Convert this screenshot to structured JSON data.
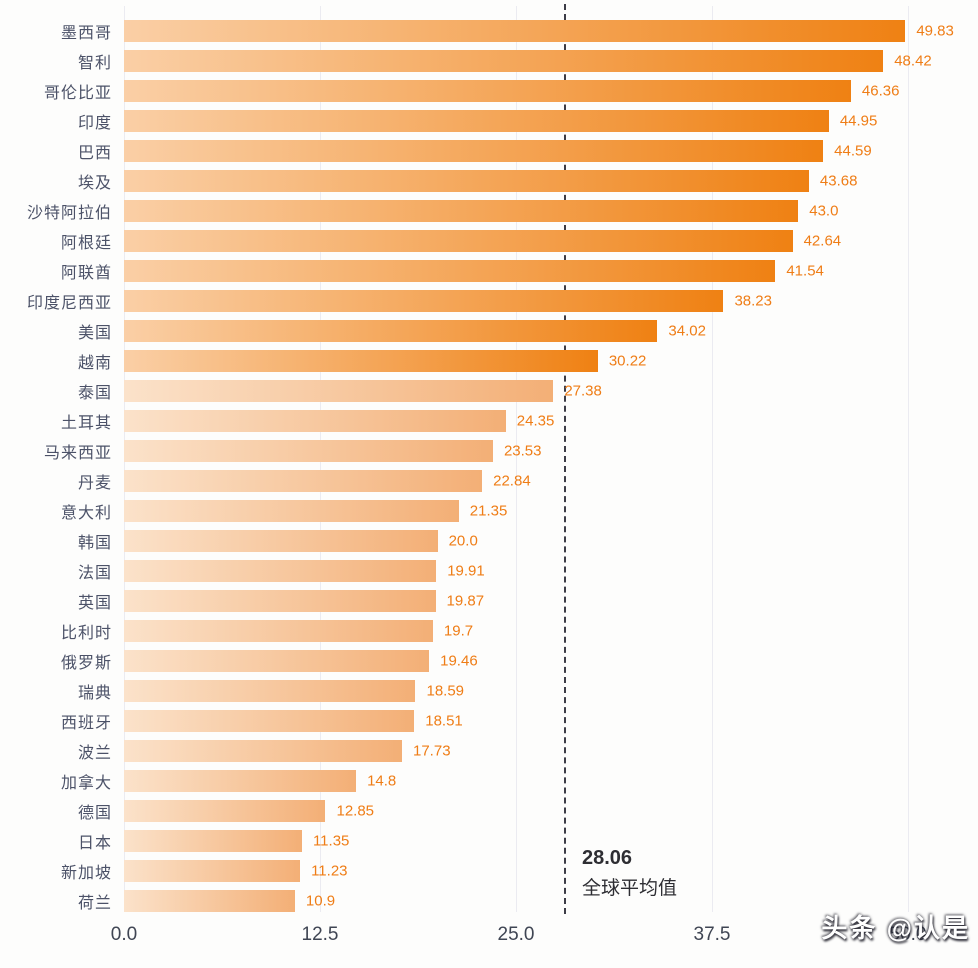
{
  "chart_data": {
    "type": "bar",
    "orientation": "horizontal",
    "title": "",
    "xlabel": "",
    "ylabel": "",
    "xlim": [
      0,
      50
    ],
    "x_ticks": [
      "0.0",
      "12.5",
      "25.0",
      "37.5",
      "50.0"
    ],
    "grid": "vertical-light",
    "legend": "none",
    "categories": [
      "墨西哥",
      "智利",
      "哥伦比亚",
      "印度",
      "巴西",
      "埃及",
      "沙特阿拉伯",
      "阿根廷",
      "阿联酋",
      "印度尼西亚",
      "美国",
      "越南",
      "泰国",
      "土耳其",
      "马来西亚",
      "丹麦",
      "意大利",
      "韩国",
      "法国",
      "英国",
      "比利时",
      "俄罗斯",
      "瑞典",
      "西班牙",
      "波兰",
      "加拿大",
      "德国",
      "日本",
      "新加坡",
      "荷兰"
    ],
    "values": [
      49.83,
      48.42,
      46.36,
      44.95,
      44.59,
      43.68,
      43.0,
      42.64,
      41.54,
      38.23,
      34.02,
      30.22,
      27.38,
      24.35,
      23.53,
      22.84,
      21.35,
      20.0,
      19.91,
      19.87,
      19.7,
      19.46,
      18.59,
      18.51,
      17.73,
      14.8,
      12.85,
      11.35,
      11.23,
      10.9
    ],
    "value_labels": [
      "49.83",
      "48.42",
      "46.36",
      "44.95",
      "44.59",
      "43.68",
      "43.0",
      "42.64",
      "41.54",
      "38.23",
      "34.02",
      "30.22",
      "27.38",
      "24.35",
      "23.53",
      "22.84",
      "21.35",
      "20.0",
      "19.91",
      "19.87",
      "19.7",
      "19.46",
      "18.59",
      "18.51",
      "17.73",
      "14.8",
      "12.85",
      "11.35",
      "11.23",
      "10.9"
    ],
    "average_line": {
      "value": 28.06,
      "label_value": "28.06",
      "label_text": "全球平均值",
      "style": "dashed-dark"
    },
    "colors": {
      "bar_above_avg_start": "#facfa6",
      "bar_above_avg_end": "#ef8113",
      "bar_below_avg_start": "#fbe2ca",
      "bar_below_avg_end": "#f3af76",
      "value_label": "#ef7d16",
      "category_label": "#4c5268",
      "axis_label": "#3f4553",
      "gridline": "#ebebf1",
      "avg_line": "#3c3c46"
    }
  },
  "watermark": "头条 @认是"
}
